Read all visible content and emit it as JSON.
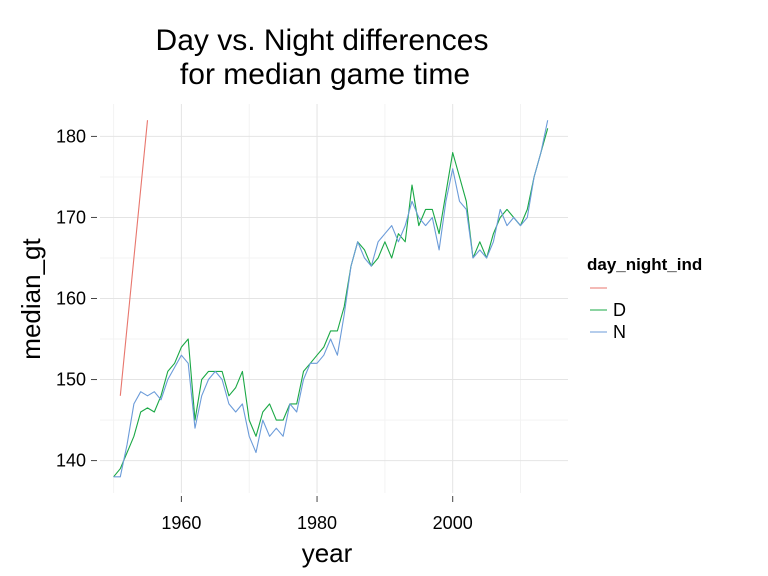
{
  "chart_data": {
    "type": "line",
    "title": [
      "Day vs. Night differences",
      "for median game time"
    ],
    "xlabel": "year",
    "ylabel": "median_gt",
    "xlim": [
      1948,
      2017
    ],
    "ylim": [
      136,
      184
    ],
    "x_ticks": [
      1960,
      1980,
      2000
    ],
    "y_ticks": [
      140,
      150,
      160,
      170,
      180
    ],
    "grid": true,
    "legend": {
      "title": "day_night_ind",
      "position": "right"
    },
    "series": [
      {
        "name": "",
        "color": "#e8766d",
        "x": [
          1951,
          1955
        ],
        "y": [
          148,
          182
        ]
      },
      {
        "name": "D",
        "color": "#1aa845",
        "x": [
          1950,
          1951,
          1952,
          1953,
          1954,
          1955,
          1956,
          1957,
          1958,
          1959,
          1960,
          1961,
          1962,
          1963,
          1964,
          1965,
          1966,
          1967,
          1968,
          1969,
          1970,
          1971,
          1972,
          1973,
          1974,
          1975,
          1976,
          1977,
          1978,
          1979,
          1980,
          1981,
          1982,
          1983,
          1984,
          1985,
          1986,
          1987,
          1988,
          1989,
          1990,
          1991,
          1992,
          1993,
          1994,
          1995,
          1996,
          1997,
          1998,
          1999,
          2000,
          2001,
          2002,
          2003,
          2004,
          2005,
          2006,
          2007,
          2008,
          2009,
          2010,
          2011,
          2012,
          2013,
          2014
        ],
        "y": [
          138,
          139,
          141,
          143,
          146,
          146.5,
          146,
          148,
          151,
          152,
          154,
          155,
          145,
          150,
          151,
          151,
          151,
          148,
          149,
          151,
          145,
          143,
          146,
          147,
          145,
          145,
          147,
          147,
          151,
          152,
          153,
          154,
          156,
          156,
          159,
          164,
          167,
          166,
          164,
          165,
          167,
          165,
          168,
          167,
          174,
          169,
          171,
          171,
          168,
          173,
          178,
          175,
          172,
          165,
          167,
          165,
          168,
          170,
          171,
          170,
          169,
          171,
          175,
          178,
          181
        ]
      },
      {
        "name": "N",
        "color": "#6b9bd9",
        "x": [
          1950,
          1951,
          1952,
          1953,
          1954,
          1955,
          1956,
          1957,
          1958,
          1959,
          1960,
          1961,
          1962,
          1963,
          1964,
          1965,
          1966,
          1967,
          1968,
          1969,
          1970,
          1971,
          1972,
          1973,
          1974,
          1975,
          1976,
          1977,
          1978,
          1979,
          1980,
          1981,
          1982,
          1983,
          1984,
          1985,
          1986,
          1987,
          1988,
          1989,
          1990,
          1991,
          1992,
          1993,
          1994,
          1995,
          1996,
          1997,
          1998,
          1999,
          2000,
          2001,
          2002,
          2003,
          2004,
          2005,
          2006,
          2007,
          2008,
          2009,
          2010,
          2011,
          2012,
          2013,
          2014
        ],
        "y": [
          138,
          138,
          142,
          147,
          148.5,
          148,
          148.5,
          147.5,
          150,
          151.5,
          153,
          152,
          144,
          148,
          150,
          151,
          150,
          147,
          146,
          147,
          143,
          141,
          145,
          143,
          144,
          143,
          147,
          146,
          150,
          152,
          152,
          153,
          155,
          153,
          158,
          164,
          167,
          165,
          164,
          167,
          168,
          169,
          167,
          169,
          172,
          170,
          169,
          170,
          166,
          172,
          176,
          172,
          171,
          165,
          166,
          165,
          167,
          171,
          169,
          170,
          169,
          170,
          175,
          178,
          182
        ]
      }
    ]
  }
}
